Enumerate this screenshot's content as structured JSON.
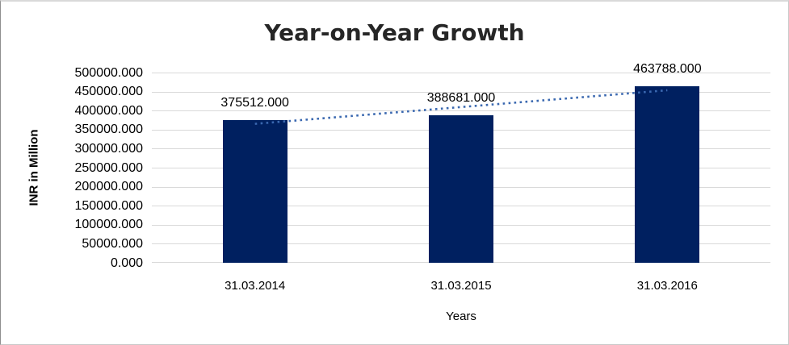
{
  "chart_data": {
    "type": "bar",
    "title": "Year-on-Year Growth",
    "categories": [
      "31.03.2014",
      "31.03.2015",
      "31.03.2016"
    ],
    "values": [
      375512,
      388681,
      463788
    ],
    "value_labels": [
      "375512.000",
      "388681.000",
      "463788.000"
    ],
    "xlabel": "Years",
    "ylabel": "INR in Million",
    "ylim": [
      0,
      500000
    ],
    "ytick_step": 50000,
    "ytick_labels_top_to_bottom": [
      "500000.000",
      "450000.000",
      "400000.000",
      "350000.000",
      "300000.000",
      "250000.000",
      "200000.000",
      "150000.000",
      "100000.000",
      "50000.000",
      "0.000"
    ],
    "grid": true,
    "legend": "none",
    "trendline": {
      "fit": "linear",
      "style": "dotted"
    },
    "colors": {
      "bar": "#002060",
      "trendline": "#3A68B0",
      "gridline": "#D9D9D9",
      "title_text": "#262626",
      "axis_text": "#000000"
    }
  }
}
